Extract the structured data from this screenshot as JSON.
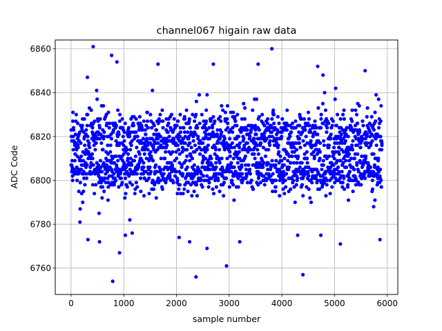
{
  "chart_data": {
    "type": "scatter",
    "title": "channel067 higain raw data",
    "xlabel": "sample number",
    "ylabel": "ADC Code",
    "xlim": [
      -300,
      6200
    ],
    "ylim": [
      6748,
      6864
    ],
    "xticks": [
      0,
      1000,
      2000,
      3000,
      4000,
      5000,
      6000
    ],
    "yticks": [
      6760,
      6780,
      6800,
      6820,
      6840,
      6860
    ],
    "grid": true,
    "marker_color": "#0000ff",
    "n_samples": 5900,
    "bands": [
      {
        "center": 6803,
        "spread": 4,
        "weight": 0.45
      },
      {
        "center": 6820,
        "spread": 6,
        "weight": 0.55
      }
    ],
    "outliers": [
      {
        "x": 420,
        "y": 6861
      },
      {
        "x": 3810,
        "y": 6860
      },
      {
        "x": 770,
        "y": 6857
      },
      {
        "x": 870,
        "y": 6854
      },
      {
        "x": 5580,
        "y": 6850
      },
      {
        "x": 1650,
        "y": 6853
      },
      {
        "x": 2700,
        "y": 6853
      },
      {
        "x": 4680,
        "y": 6852
      },
      {
        "x": 3550,
        "y": 6853
      },
      {
        "x": 4780,
        "y": 6848
      },
      {
        "x": 2950,
        "y": 6761
      },
      {
        "x": 2370,
        "y": 6756
      },
      {
        "x": 4400,
        "y": 6757
      },
      {
        "x": 790,
        "y": 6754
      },
      {
        "x": 920,
        "y": 6767
      },
      {
        "x": 2580,
        "y": 6769
      },
      {
        "x": 3200,
        "y": 6772
      },
      {
        "x": 2250,
        "y": 6772
      },
      {
        "x": 540,
        "y": 6772
      },
      {
        "x": 320,
        "y": 6773
      },
      {
        "x": 1160,
        "y": 6776
      },
      {
        "x": 5110,
        "y": 6771
      },
      {
        "x": 1030,
        "y": 6775
      },
      {
        "x": 2050,
        "y": 6774
      },
      {
        "x": 4300,
        "y": 6775
      }
    ]
  }
}
